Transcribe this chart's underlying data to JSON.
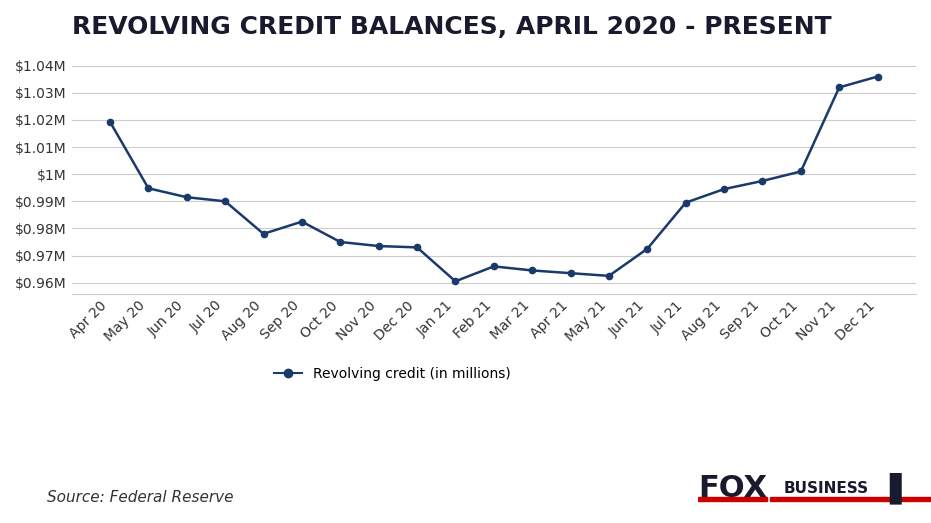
{
  "title": "REVOLVING CREDIT BALANCES, APRIL 2020 - PRESENT",
  "source": "Source: Federal Reserve",
  "legend_label": "Revolving credit (in millions)",
  "x_labels": [
    "Apr 20",
    "May 20",
    "Jun 20",
    "Jul 20",
    "Aug 20",
    "Sep 20",
    "Oct 20",
    "Nov 20",
    "Dec 20",
    "Jan 21",
    "Feb 21",
    "Mar 21",
    "Apr 21",
    "May 21",
    "Jun 21",
    "Jul 21",
    "Aug 21",
    "Sep 21",
    "Oct 21",
    "Nov 21",
    "Dec 21"
  ],
  "values": [
    1019.3,
    994.8,
    991.5,
    990.0,
    978.0,
    982.5,
    975.0,
    973.5,
    973.0,
    960.5,
    966.0,
    964.5,
    963.5,
    962.5,
    972.5,
    989.5,
    994.5,
    997.5,
    1001.0,
    1032.0,
    1036.0
  ],
  "ylim": [
    956,
    1044
  ],
  "yticks": [
    960,
    970,
    980,
    990,
    1000,
    1010,
    1020,
    1030,
    1040
  ],
  "ytick_labels": [
    "$0.96M",
    "$0.97M",
    "$0.98M",
    "$0.99M",
    "$1M",
    "$1.01M",
    "$1.02M",
    "$1.03M",
    "$1.04M"
  ],
  "line_color": "#1a3a6b",
  "marker_color": "#1a3a6b",
  "background_color": "#ffffff",
  "grid_color": "#cccccc",
  "title_color": "#1a1a2e",
  "title_fontsize": 18,
  "tick_fontsize": 10,
  "source_fontsize": 11
}
